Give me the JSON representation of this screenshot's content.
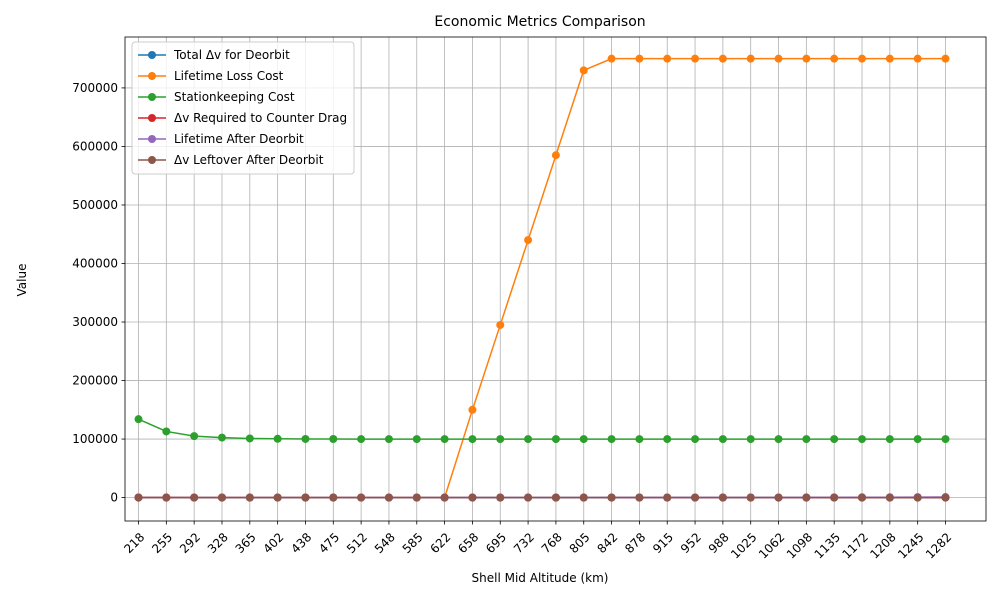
{
  "chart_data": {
    "type": "line",
    "title": "Economic Metrics Comparison",
    "xlabel": "Shell Mid Altitude (km)",
    "ylabel": "Value",
    "ylim": [
      -40000,
      787000
    ],
    "yticks": [
      0,
      100000,
      200000,
      300000,
      400000,
      500000,
      600000,
      700000
    ],
    "grid": true,
    "legend_position": "top-left",
    "categories": [
      "218",
      "255",
      "292",
      "328",
      "365",
      "402",
      "438",
      "475",
      "512",
      "548",
      "585",
      "622",
      "658",
      "695",
      "732",
      "768",
      "805",
      "842",
      "878",
      "915",
      "952",
      "988",
      "1025",
      "1062",
      "1098",
      "1135",
      "1172",
      "1208",
      "1245",
      "1282"
    ],
    "series": [
      {
        "name": "Total Δv for Deorbit",
        "color": "#1f77b4",
        "values": [
          60,
          60,
          60,
          60,
          60,
          60,
          60,
          60,
          60,
          60,
          60,
          60,
          60,
          60,
          60,
          60,
          60,
          60,
          60,
          60,
          60,
          60,
          60,
          60,
          60,
          60,
          60,
          60,
          60,
          60
        ]
      },
      {
        "name": "Lifetime Loss Cost",
        "color": "#ff7f0e",
        "values": [
          0,
          0,
          0,
          0,
          0,
          0,
          0,
          0,
          0,
          0,
          0,
          0,
          150000,
          295000,
          440000,
          585000,
          730000,
          750000,
          750000,
          750000,
          750000,
          750000,
          750000,
          750000,
          750000,
          750000,
          750000,
          750000,
          750000,
          750000
        ]
      },
      {
        "name": "Stationkeeping Cost",
        "color": "#2ca02c",
        "values": [
          134000,
          113000,
          105000,
          102500,
          101000,
          100500,
          100200,
          100100,
          100000,
          100000,
          100000,
          100000,
          100000,
          100000,
          100000,
          100000,
          100000,
          100000,
          100000,
          100000,
          100000,
          100000,
          100000,
          100000,
          100000,
          100000,
          100000,
          100000,
          100000,
          100000
        ]
      },
      {
        "name": "Δv Required to Counter Drag",
        "color": "#d62728",
        "values": [
          200,
          80,
          30,
          10,
          5,
          2,
          1,
          0,
          0,
          0,
          0,
          0,
          0,
          0,
          0,
          0,
          0,
          0,
          0,
          0,
          0,
          0,
          0,
          0,
          0,
          0,
          0,
          0,
          0,
          0
        ]
      },
      {
        "name": "Lifetime After Deorbit",
        "color": "#9467bd",
        "values": [
          0,
          0,
          0,
          0,
          0,
          0,
          0,
          0,
          1,
          1,
          2,
          3,
          5,
          8,
          12,
          20,
          30,
          45,
          60,
          80,
          110,
          150,
          200,
          260,
          330,
          420,
          520,
          640,
          780,
          950
        ]
      },
      {
        "name": "Δv Leftover After Deorbit",
        "color": "#8c564b",
        "values": [
          40,
          40,
          40,
          40,
          40,
          40,
          40,
          40,
          40,
          40,
          40,
          40,
          40,
          40,
          40,
          40,
          40,
          40,
          40,
          40,
          40,
          40,
          40,
          40,
          40,
          40,
          40,
          40,
          40,
          40
        ]
      }
    ]
  }
}
